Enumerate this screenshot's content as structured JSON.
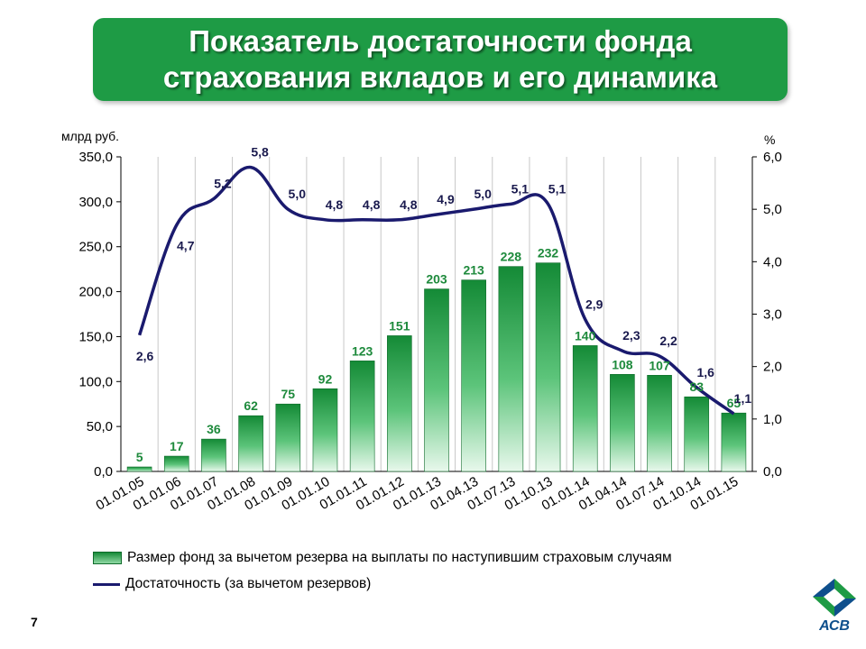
{
  "title": {
    "line1": "Показатель достаточности фонда",
    "line2": "страхования вкладов и его динамика"
  },
  "page_number": "7",
  "logo_text": "АСВ",
  "chart_data": {
    "type": "bar",
    "title": "Показатель достаточности фонда страхования вкладов и его динамика",
    "categories": [
      "01.01.05",
      "01.01.06",
      "01.01.07",
      "01.01.08",
      "01.01.09",
      "01.01.10",
      "01.01.11",
      "01.01.12",
      "01.01.13",
      "01.04.13",
      "01.07.13",
      "01.10.13",
      "01.01.14",
      "01.04.14",
      "01.07.14",
      "01.10.14",
      "01.01.15"
    ],
    "ylabel_left": "млрд руб.",
    "ylabel_right": "%",
    "ylim_left": [
      0,
      350
    ],
    "ylim_right": [
      0,
      6
    ],
    "yticks_left": [
      "0,0",
      "50,0",
      "100,0",
      "150,0",
      "200,0",
      "250,0",
      "300,0",
      "350,0"
    ],
    "yticks_right": [
      "0,0",
      "1,0",
      "2,0",
      "3,0",
      "4,0",
      "5,0",
      "6,0"
    ],
    "series": [
      {
        "name": "Размер фонд за вычетом резерва на выплаты по наступившим страховым случаям",
        "type": "bar",
        "axis": "left",
        "color": "#168a38",
        "label_color": "#1e8a3c",
        "values": [
          5,
          17,
          36,
          62,
          75,
          92,
          123,
          151,
          203,
          213,
          228,
          232,
          140,
          108,
          107,
          83,
          65
        ],
        "labels": [
          "5",
          "17",
          "36",
          "62",
          "75",
          "92",
          "123",
          "151",
          "203",
          "213",
          "228",
          "232",
          "140",
          "108",
          "107",
          "83",
          "65"
        ]
      },
      {
        "name": "Достаточность (за вычетом резервов)",
        "type": "line",
        "axis": "right",
        "color": "#1a1a6e",
        "values": [
          2.6,
          4.7,
          5.2,
          5.8,
          5.0,
          4.8,
          4.8,
          4.8,
          4.9,
          5.0,
          5.1,
          5.1,
          2.9,
          2.3,
          2.2,
          1.6,
          1.1
        ],
        "labels": [
          "2,6",
          "4,7",
          "5,2",
          "5,8",
          "5,0",
          "4,8",
          "4,8",
          "4,8",
          "4,9",
          "5,0",
          "5,1",
          "5,1",
          "2,9",
          "2,3",
          "2,2",
          "1,6",
          "1,1"
        ]
      }
    ]
  }
}
